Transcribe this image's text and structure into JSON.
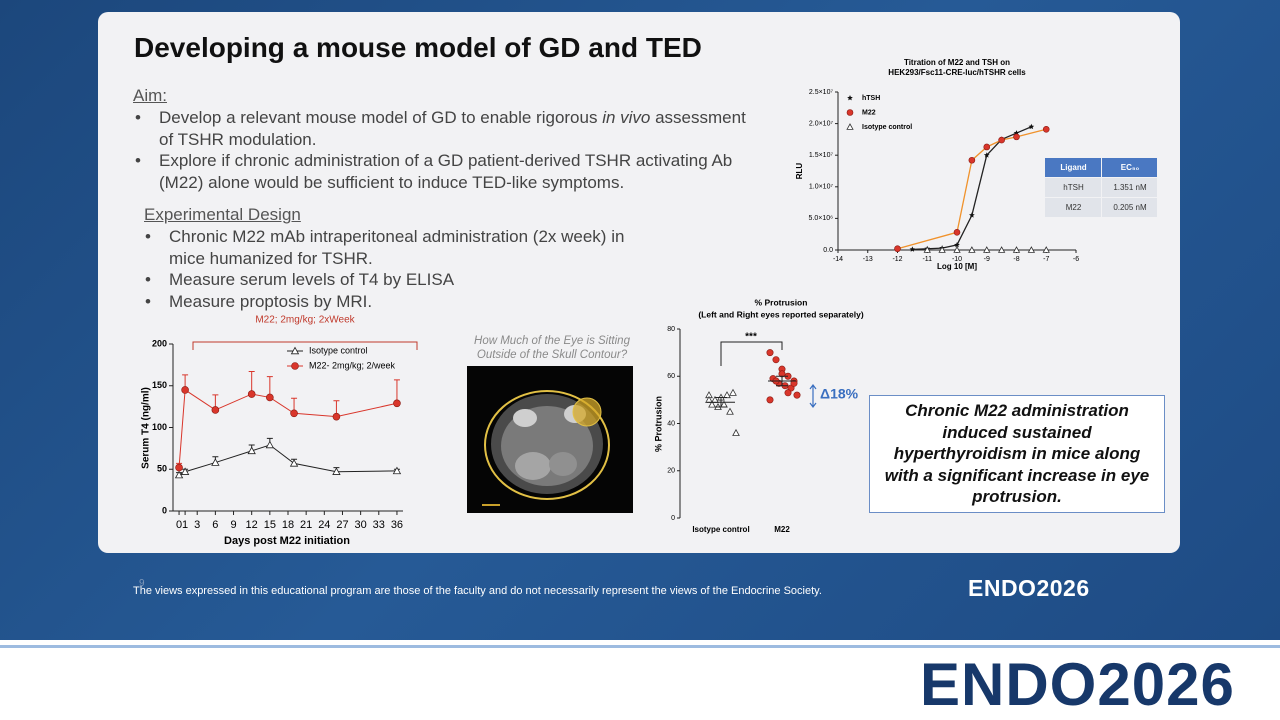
{
  "slide": {
    "title": "Developing a mouse model of GD and TED",
    "aim": {
      "heading": "Aim:",
      "bullets": [
        [
          "Develop a relevant mouse model of GD to enable rigorous ",
          "in vivo",
          " assessment of TSHR modulation."
        ],
        [
          "Explore if chronic administration of a GD patient-derived TSHR activating Ab (M22) alone would be sufficient to induce TED-like symptoms."
        ]
      ]
    },
    "design": {
      "heading": "Experimental Design",
      "bullets": [
        "Chronic M22 mAb intraperitoneal administration (2x week) in mice humanized for TSHR.",
        "Measure serum levels of T4 by ELISA",
        "Measure proptosis by MRI."
      ]
    },
    "image_caption": [
      "How Much of the Eye is Sitting",
      "Outside of the Skull Contour?"
    ],
    "conclusion": "Chronic M22 administration induced sustained hyperthyroidism in mice along with a significant increase in eye protrusion.",
    "page_number": "9",
    "footer": "The views expressed in this educational program are those of the faculty and do not necessarily represent the views of the Endocrine Society.",
    "footer_logo": "ENDO2026"
  },
  "banner_logo": "ENDO2026",
  "chart_data": [
    {
      "type": "line",
      "title": [
        "Titration of M22 and TSH on",
        "HEK293/Fsc11-CRE-luc/hTSHR cells"
      ],
      "x_label": "Log 10 [M]",
      "y_label": "RLU",
      "xlim": [
        -14,
        -6
      ],
      "xticks": [
        -14,
        -13,
        -12,
        -11,
        -10,
        -9,
        -8,
        -7,
        -6
      ],
      "ylim": [
        0,
        25000000
      ],
      "yticks": [
        {
          "value": 0,
          "label": "0.0"
        },
        {
          "value": 5000000,
          "label": "5.0×10⁶"
        },
        {
          "value": 10000000,
          "label": "1.0×10⁷"
        },
        {
          "value": 15000000,
          "label": "1.5×10⁷"
        },
        {
          "value": 20000000,
          "label": "2.0×10⁷"
        },
        {
          "value": 25000000,
          "label": "2.5×10⁷"
        }
      ],
      "series": [
        {
          "name": "hTSH",
          "color": "#111111",
          "line_color": "#222222",
          "marker": "star",
          "line": true,
          "x": [
            -11.5,
            -11,
            -10.5,
            -10,
            -9.5,
            -9,
            -8.5,
            -8,
            -7.5
          ],
          "values": [
            100000,
            200000,
            300000,
            800000,
            5500000,
            15000000,
            17500000,
            18500000,
            19500000
          ]
        },
        {
          "name": "M22",
          "color": "#d9362b",
          "line_color": "#f0922b",
          "marker": "circle",
          "line": true,
          "x": [
            -12,
            -10,
            -9.5,
            -9,
            -8.5,
            -8,
            -7
          ],
          "values": [
            200000,
            2800000,
            14200000,
            16300000,
            17400000,
            17900000,
            19100000
          ]
        },
        {
          "name": "Isotype control",
          "color": "#333333",
          "marker": "triangle",
          "line": false,
          "x": [
            -11,
            -10.5,
            -10,
            -9.5,
            -9,
            -8.5,
            -8,
            -7.5,
            -7
          ],
          "values": [
            0,
            0,
            0,
            0,
            0,
            0,
            0,
            0,
            0
          ]
        }
      ],
      "table": {
        "header": [
          "Ligand",
          "EC₅₀"
        ],
        "rows": [
          [
            "hTSH",
            "1.351 nM"
          ],
          [
            "M22",
            "0.205 nM"
          ]
        ]
      }
    },
    {
      "type": "line",
      "title": "M22; 2mg/kg; 2xWeek",
      "x_label": "Days post M22 initiation",
      "y_label": "Serum T4 (ng/ml)",
      "xlim": [
        -1,
        37
      ],
      "xticks": [
        0,
        1,
        3,
        6,
        9,
        12,
        15,
        18,
        21,
        24,
        27,
        30,
        33,
        36
      ],
      "ylim": [
        0,
        200
      ],
      "yticks": [
        0,
        50,
        100,
        150,
        200
      ],
      "series": [
        {
          "name": "Isotype control",
          "color": "#222222",
          "marker": "triangle",
          "x": [
            0,
            1,
            6,
            12,
            15,
            19,
            26,
            36
          ],
          "values": [
            43,
            47,
            58,
            72,
            79,
            57,
            47,
            48
          ],
          "errors": [
            3,
            3,
            7,
            7,
            8,
            5,
            5,
            2
          ]
        },
        {
          "name": "M22- 2mg/kg; 2/week",
          "color": "#d9362b",
          "marker": "circle",
          "x": [
            0,
            1,
            6,
            12,
            15,
            19,
            26,
            36
          ],
          "values": [
            52,
            145,
            121,
            140,
            136,
            117,
            113,
            129
          ],
          "errors": [
            5,
            18,
            18,
            27,
            25,
            18,
            19,
            28
          ]
        }
      ]
    },
    {
      "type": "scatter",
      "title": "% Protrusion",
      "subtitle": "(Left and Right eyes reported separately)",
      "y_label": "% Protrusion",
      "categories": [
        "Isotype control",
        "M22"
      ],
      "ylim": [
        0,
        80
      ],
      "yticks": [
        0,
        20,
        40,
        60,
        80
      ],
      "groups": [
        {
          "color": "#333333",
          "marker": "triangle",
          "values": [
            52,
            50,
            51,
            52,
            53,
            48,
            47,
            48,
            45,
            36,
            50
          ],
          "mean": 49,
          "error": 2
        },
        {
          "color": "#d9362b",
          "marker": "circle",
          "values": [
            70,
            67,
            63,
            60,
            58,
            59,
            57,
            56,
            55,
            52,
            50,
            58,
            61,
            53,
            57
          ],
          "mean": 58,
          "error": 2
        }
      ],
      "significance": "***",
      "change": "Δ18%",
      "change_color": "#3a6fc0"
    }
  ]
}
